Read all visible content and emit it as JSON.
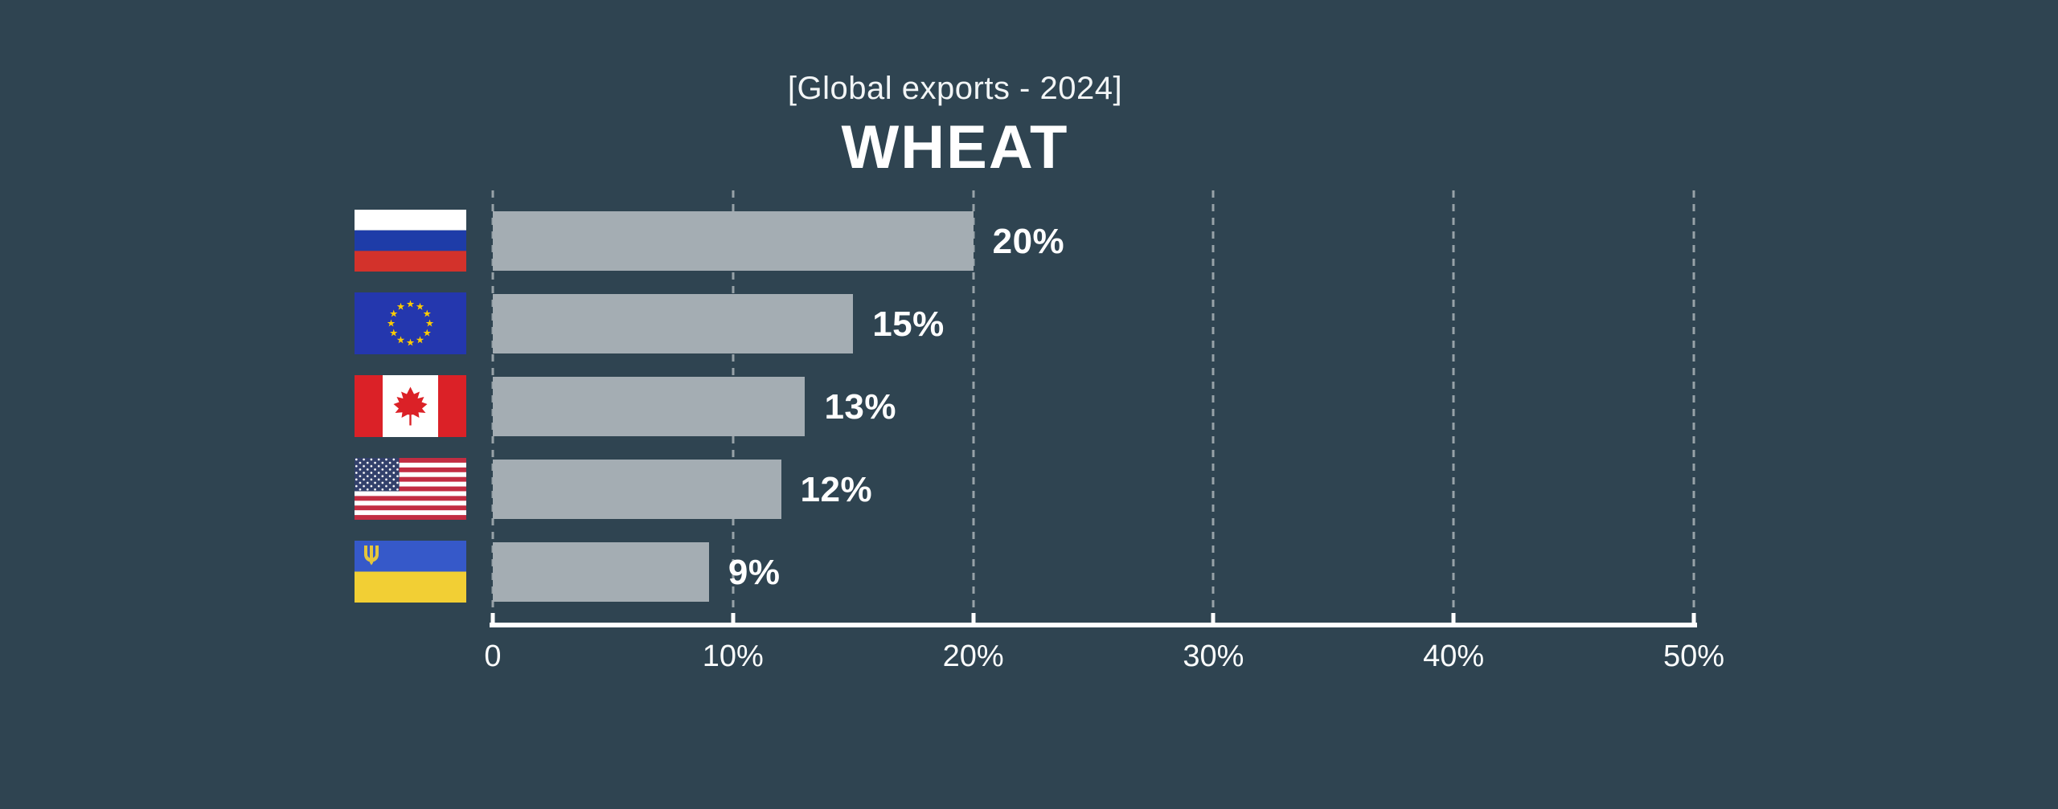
{
  "header": {
    "subtitle": "[Global exports - 2024]",
    "title": "WHEAT"
  },
  "chart_data": {
    "type": "bar",
    "orientation": "horizontal",
    "title": "WHEAT",
    "subtitle": "[Global exports - 2024]",
    "categories": [
      "Russia",
      "European Union",
      "Canada",
      "United States",
      "Ukraine"
    ],
    "values": [
      20,
      15,
      13,
      12,
      9
    ],
    "value_labels": [
      "20%",
      "15%",
      "13%",
      "12%",
      "9%"
    ],
    "x_axis": {
      "min": 0,
      "max": 50,
      "ticks": [
        "0",
        "10%",
        "20%",
        "30%",
        "40%",
        "50%"
      ],
      "gridlines": "dashed-vertical"
    },
    "legend": "none",
    "colors": {
      "background": "#2F4451",
      "bar": "#A4ADB3",
      "text": "#FFFFFF",
      "axis": "#FFFFFF",
      "gridline": "rgba(255,255,255,0.5)"
    }
  },
  "rows": [
    {
      "country": "Russia",
      "flag_icon": "russia-flag-icon",
      "value": 20,
      "label": "20%"
    },
    {
      "country": "European Union",
      "flag_icon": "eu-flag-icon",
      "value": 15,
      "label": "15%"
    },
    {
      "country": "Canada",
      "flag_icon": "canada-flag-icon",
      "value": 13,
      "label": "13%"
    },
    {
      "country": "United States",
      "flag_icon": "usa-flag-icon",
      "value": 12,
      "label": "12%"
    },
    {
      "country": "Ukraine",
      "flag_icon": "ukraine-flag-icon",
      "value": 9,
      "label": "9%"
    }
  ]
}
